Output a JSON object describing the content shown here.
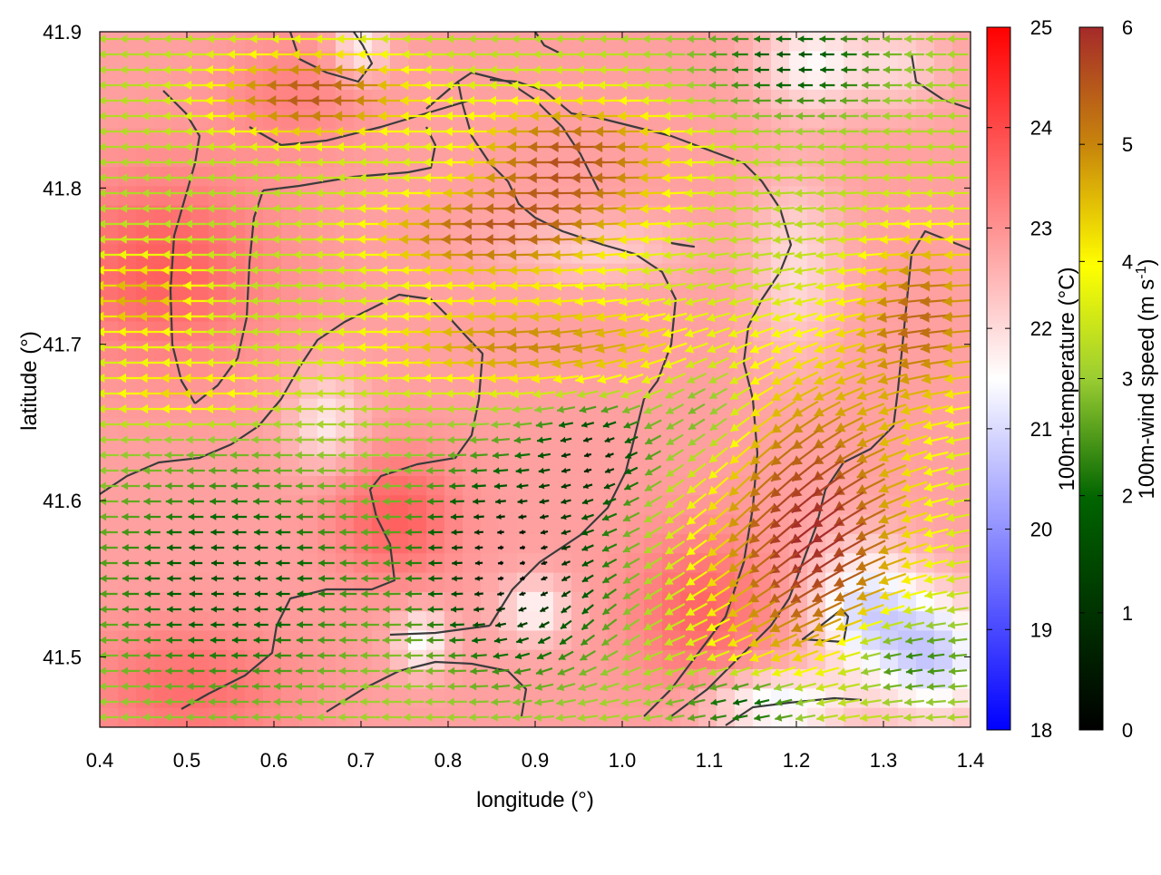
{
  "chart_data": {
    "type": "heatmap",
    "xlabel": "longitude (°)",
    "ylabel": "latitude (°)",
    "xlim": [
      0.4,
      1.4
    ],
    "ylim": [
      41.455,
      41.9
    ],
    "x_ticks": [
      "0.4",
      "0.5",
      "0.6",
      "0.7",
      "0.8",
      "0.9",
      "1.0",
      "1.1",
      "1.2",
      "1.3",
      "1.4"
    ],
    "y_ticks": [
      "41.5",
      "41.6",
      "41.7",
      "41.8",
      "41.9"
    ],
    "grid": false,
    "overlays": [
      "wind vectors colored by speed",
      "coastline / terrain contour lines"
    ],
    "temperature_colorbar": {
      "label": "100m-temperature (°C)",
      "range": [
        18,
        25
      ],
      "ticks": [
        "18",
        "19",
        "20",
        "21",
        "22",
        "23",
        "24",
        "25"
      ],
      "colors": [
        "#0000ff",
        "#ffffff",
        "#ff0000"
      ]
    },
    "wind_colorbar": {
      "label": "100m-wind speed (m s",
      "label_sup": "-1",
      "label_end": ")",
      "range": [
        0,
        6
      ],
      "ticks": [
        "0",
        "1",
        "2",
        "3",
        "4",
        "5",
        "6"
      ],
      "colors": [
        "#000000",
        "#006400",
        "#9acd32",
        "#ffff00",
        "#c8860b",
        "#a52a2a"
      ]
    }
  }
}
